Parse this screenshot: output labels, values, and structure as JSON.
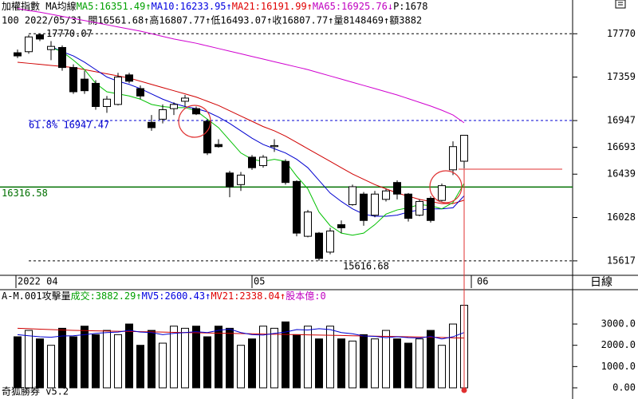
{
  "header": {
    "line1": [
      {
        "text": "加權指數 MA均線",
        "color": "#000000"
      },
      {
        "text": "MA5:16351.49↑",
        "color": "#00a000"
      },
      {
        "text": "MA10:16233.95↑",
        "color": "#0000e0"
      },
      {
        "text": "MA21:16191.99↑",
        "color": "#e00000"
      },
      {
        "text": "MA65:16925.76↓",
        "color": "#c000c0"
      },
      {
        "text": "P:1678",
        "color": "#000000"
      }
    ],
    "line2": "100 2022/05/31 開16561.68↑高16807.77↑低16493.07↑收16807.77↑量8148469↑額3882",
    "footer": "奇狐勝券 v5.2",
    "period": "日線"
  },
  "chart_data": [
    {
      "type": "candlestick",
      "ohlc": {
        "open": [
          17590,
          17600,
          17760,
          17620,
          17640,
          17450,
          17340,
          17300,
          17080,
          17100,
          17380,
          17250,
          16930,
          16960,
          17060,
          17130,
          17060,
          16940,
          16720,
          16450,
          16340,
          16600,
          16520,
          16700,
          16560,
          16370,
          15850,
          15880,
          15700,
          15960,
          16150,
          16250,
          16050,
          16200,
          16360,
          16250,
          16050,
          16210,
          16190,
          16480,
          16561.68
        ],
        "high": [
          17620,
          17760,
          17770.07,
          17700,
          17660,
          17480,
          17420,
          17330,
          17180,
          17400,
          17400,
          17280,
          17000,
          17100,
          17120,
          17190,
          17080,
          16960,
          16770,
          16470,
          16460,
          16620,
          16620,
          16770,
          16580,
          16380,
          16100,
          15890,
          15930,
          16000,
          16340,
          16270,
          16280,
          16300,
          16380,
          16260,
          16200,
          16230,
          16350,
          16750,
          16807.77
        ],
        "low": [
          17540,
          17580,
          17700,
          17520,
          17420,
          17200,
          17200,
          17050,
          17020,
          17090,
          17300,
          17150,
          16850,
          16920,
          17000,
          17080,
          17000,
          16620,
          16690,
          16220,
          16280,
          16480,
          16500,
          16650,
          16340,
          15850,
          15840,
          15616.68,
          15680,
          15880,
          16140,
          15950,
          16030,
          16180,
          16200,
          15990,
          16040,
          15980,
          16180,
          16430,
          16493.07
        ],
        "close": [
          17560,
          17740,
          17720,
          17650,
          17450,
          17220,
          17230,
          17080,
          17150,
          17360,
          17320,
          17180,
          16880,
          17050,
          17100,
          17160,
          17010,
          16640,
          16700,
          16320,
          16430,
          16500,
          16600,
          16710,
          16360,
          15880,
          16080,
          15640,
          15900,
          15930,
          16320,
          16000,
          16250,
          16280,
          16250,
          16020,
          16180,
          16000,
          16330,
          16700,
          16807.77
        ]
      },
      "ylim": [
        15480,
        18090
      ],
      "yticks": [
        17770,
        17359,
        16947,
        16693,
        16439,
        16028,
        15617
      ],
      "series": [
        {
          "name": "MA65",
          "color": "#d000d0",
          "values": [
            18010,
            17990,
            17975,
            17955,
            17935,
            17915,
            17895,
            17875,
            17855,
            17835,
            17815,
            17795,
            17770,
            17745,
            17720,
            17700,
            17680,
            17655,
            17630,
            17605,
            17580,
            17555,
            17530,
            17505,
            17480,
            17455,
            17430,
            17400,
            17370,
            17340,
            17310,
            17280,
            17250,
            17220,
            17190,
            17155,
            17120,
            17085,
            17045,
            17000,
            16925.76
          ]
        },
        {
          "name": "MA21",
          "color": "#d00000",
          "values": [
            17500,
            17490,
            17480,
            17470,
            17460,
            17450,
            17430,
            17410,
            17390,
            17370,
            17350,
            17320,
            17290,
            17260,
            17230,
            17200,
            17170,
            17130,
            17090,
            17040,
            16990,
            16940,
            16890,
            16850,
            16800,
            16740,
            16680,
            16620,
            16560,
            16500,
            16440,
            16390,
            16340,
            16300,
            16260,
            16230,
            16200,
            16180,
            16160,
            16160,
            16191.99
          ]
        },
        {
          "name": "MA10",
          "color": "#0000d0",
          "values": [
            null,
            null,
            null,
            17650,
            17600,
            17560,
            17500,
            17430,
            17360,
            17320,
            17290,
            17250,
            17200,
            17150,
            17110,
            17080,
            17060,
            17030,
            16980,
            16920,
            16850,
            16780,
            16720,
            16680,
            16640,
            16580,
            16500,
            16380,
            16260,
            16180,
            16110,
            16060,
            16040,
            16040,
            16050,
            16080,
            16100,
            16110,
            16110,
            16120,
            16233.95
          ]
        },
        {
          "name": "MA5",
          "color": "#00c000",
          "values": [
            null,
            null,
            null,
            17640,
            17600,
            17520,
            17430,
            17300,
            17220,
            17200,
            17180,
            17150,
            17100,
            17080,
            17070,
            17070,
            17040,
            16960,
            16880,
            16760,
            16640,
            16580,
            16560,
            16580,
            16560,
            16420,
            16300,
            16080,
            15950,
            15880,
            15860,
            15880,
            15960,
            16060,
            16100,
            16120,
            16150,
            16140,
            16110,
            16170,
            16351.49
          ]
        }
      ],
      "levels": [
        {
          "value": 17770.07,
          "label": "17770.07",
          "color": "#000000",
          "style": "dashed"
        },
        {
          "value": 16947.47,
          "label": "61.8% 16947.47",
          "color": "#0000d0",
          "style": "dashed"
        },
        {
          "value": 16316.58,
          "label": "16316.58",
          "color": "#007000",
          "style": "solid"
        },
        {
          "value": 15616.68,
          "label": "15616.68",
          "color": "#000000",
          "style": "dashed"
        }
      ],
      "x_labels": [
        "2022 04",
        "05",
        "06"
      ]
    },
    {
      "type": "bar",
      "title": "A-M.001攻擊量",
      "stats": [
        {
          "text": "成交:3882.29↑",
          "color": "#00a000"
        },
        {
          "text": "MV5:2600.43↑",
          "color": "#0000e0"
        },
        {
          "text": "MV21:2338.04↑",
          "color": "#e00000"
        },
        {
          "text": "股本億:0",
          "color": "#c000c0"
        }
      ],
      "values": [
        2400,
        2700,
        2300,
        2000,
        2800,
        2400,
        2900,
        2500,
        2700,
        2500,
        3000,
        2000,
        2700,
        2100,
        2900,
        2800,
        2900,
        2400,
        2900,
        2800,
        2000,
        2300,
        2900,
        2800,
        3100,
        2500,
        2900,
        2300,
        2900,
        2300,
        2200,
        2500,
        2300,
        2700,
        2300,
        2100,
        2300,
        2700,
        2000,
        3000,
        3882.29
      ],
      "series": [
        {
          "name": "MV21",
          "color": "#d00000",
          "values": [
            2800,
            2780,
            2760,
            2740,
            2720,
            2700,
            2690,
            2680,
            2670,
            2660,
            2650,
            2640,
            2630,
            2620,
            2610,
            2600,
            2590,
            2580,
            2570,
            2560,
            2550,
            2540,
            2530,
            2520,
            2510,
            2500,
            2490,
            2480,
            2470,
            2460,
            2450,
            2440,
            2430,
            2420,
            2410,
            2400,
            2390,
            2380,
            2370,
            2350,
            2338.04
          ]
        },
        {
          "name": "MV5",
          "color": "#0000d0",
          "values": [
            2500,
            2450,
            2400,
            2380,
            2440,
            2450,
            2500,
            2560,
            2600,
            2620,
            2700,
            2620,
            2600,
            2500,
            2560,
            2600,
            2640,
            2600,
            2700,
            2760,
            2600,
            2500,
            2480,
            2560,
            2620,
            2740,
            2720,
            2780,
            2740,
            2600,
            2540,
            2440,
            2420,
            2360,
            2400,
            2360,
            2340,
            2420,
            2300,
            2400,
            2600.43
          ]
        }
      ],
      "ylim": [
        0,
        4540
      ],
      "yticks": [
        {
          "value": 3000,
          "label": "3000.0"
        },
        {
          "value": 2000,
          "label": "2000.0"
        },
        {
          "value": 1000,
          "label": "1000.0"
        },
        {
          "value": 0,
          "label": "0.00"
        }
      ]
    }
  ]
}
